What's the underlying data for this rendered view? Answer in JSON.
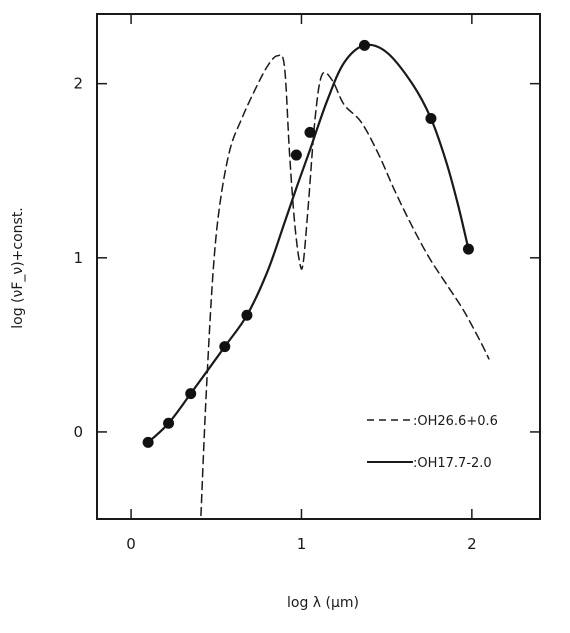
{
  "chart_data": {
    "type": "line",
    "xlabel": "log λ (μm)",
    "ylabel": "log (νF_ν)+const.",
    "xlim": [
      -0.2,
      2.4
    ],
    "ylim": [
      -0.5,
      2.4
    ],
    "x_ticks": [
      0,
      1,
      2
    ],
    "y_ticks": [
      0,
      1,
      2
    ],
    "x_tick_labels": [
      "0",
      "1",
      "2"
    ],
    "y_tick_labels": [
      "0",
      "1",
      "2"
    ],
    "grid": false,
    "legend_position": "lower-right",
    "series": [
      {
        "name": ":OH26.6+0.6",
        "style": "dashed",
        "color": "#1a1a1a",
        "x": [
          0.41,
          0.44,
          0.48,
          0.52,
          0.58,
          0.65,
          0.72,
          0.8,
          0.86,
          0.9,
          0.93,
          0.96,
          0.99,
          1.01,
          1.04,
          1.08,
          1.12,
          1.18,
          1.25,
          1.35,
          1.45,
          1.55,
          1.65,
          1.75,
          1.85,
          1.95,
          2.05,
          2.1
        ],
        "y": [
          -0.48,
          0.2,
          0.9,
          1.3,
          1.62,
          1.8,
          1.95,
          2.1,
          2.16,
          2.1,
          1.6,
          1.2,
          0.97,
          0.97,
          1.3,
          1.8,
          2.05,
          2.02,
          1.88,
          1.78,
          1.6,
          1.38,
          1.18,
          1.0,
          0.85,
          0.7,
          0.52,
          0.42
        ]
      },
      {
        "name": ":OH17.7-2.0",
        "style": "solid",
        "color": "#1a1a1a",
        "x": [
          0.1,
          0.22,
          0.35,
          0.55,
          0.68,
          0.8,
          0.9,
          0.97,
          1.05,
          1.15,
          1.25,
          1.37,
          1.5,
          1.65,
          1.76,
          1.85,
          1.92,
          1.98
        ],
        "y": [
          -0.06,
          0.05,
          0.22,
          0.49,
          0.67,
          0.92,
          1.2,
          1.4,
          1.62,
          1.9,
          2.12,
          2.22,
          2.18,
          2.0,
          1.8,
          1.55,
          1.3,
          1.05
        ]
      }
    ],
    "markers": {
      "series": ":OH17.7-2.0",
      "x": [
        0.1,
        0.22,
        0.35,
        0.55,
        0.68,
        0.97,
        1.05,
        1.37,
        1.76,
        1.98
      ],
      "y": [
        -0.06,
        0.05,
        0.22,
        0.49,
        0.67,
        1.59,
        1.72,
        2.22,
        1.8,
        1.05
      ]
    }
  }
}
